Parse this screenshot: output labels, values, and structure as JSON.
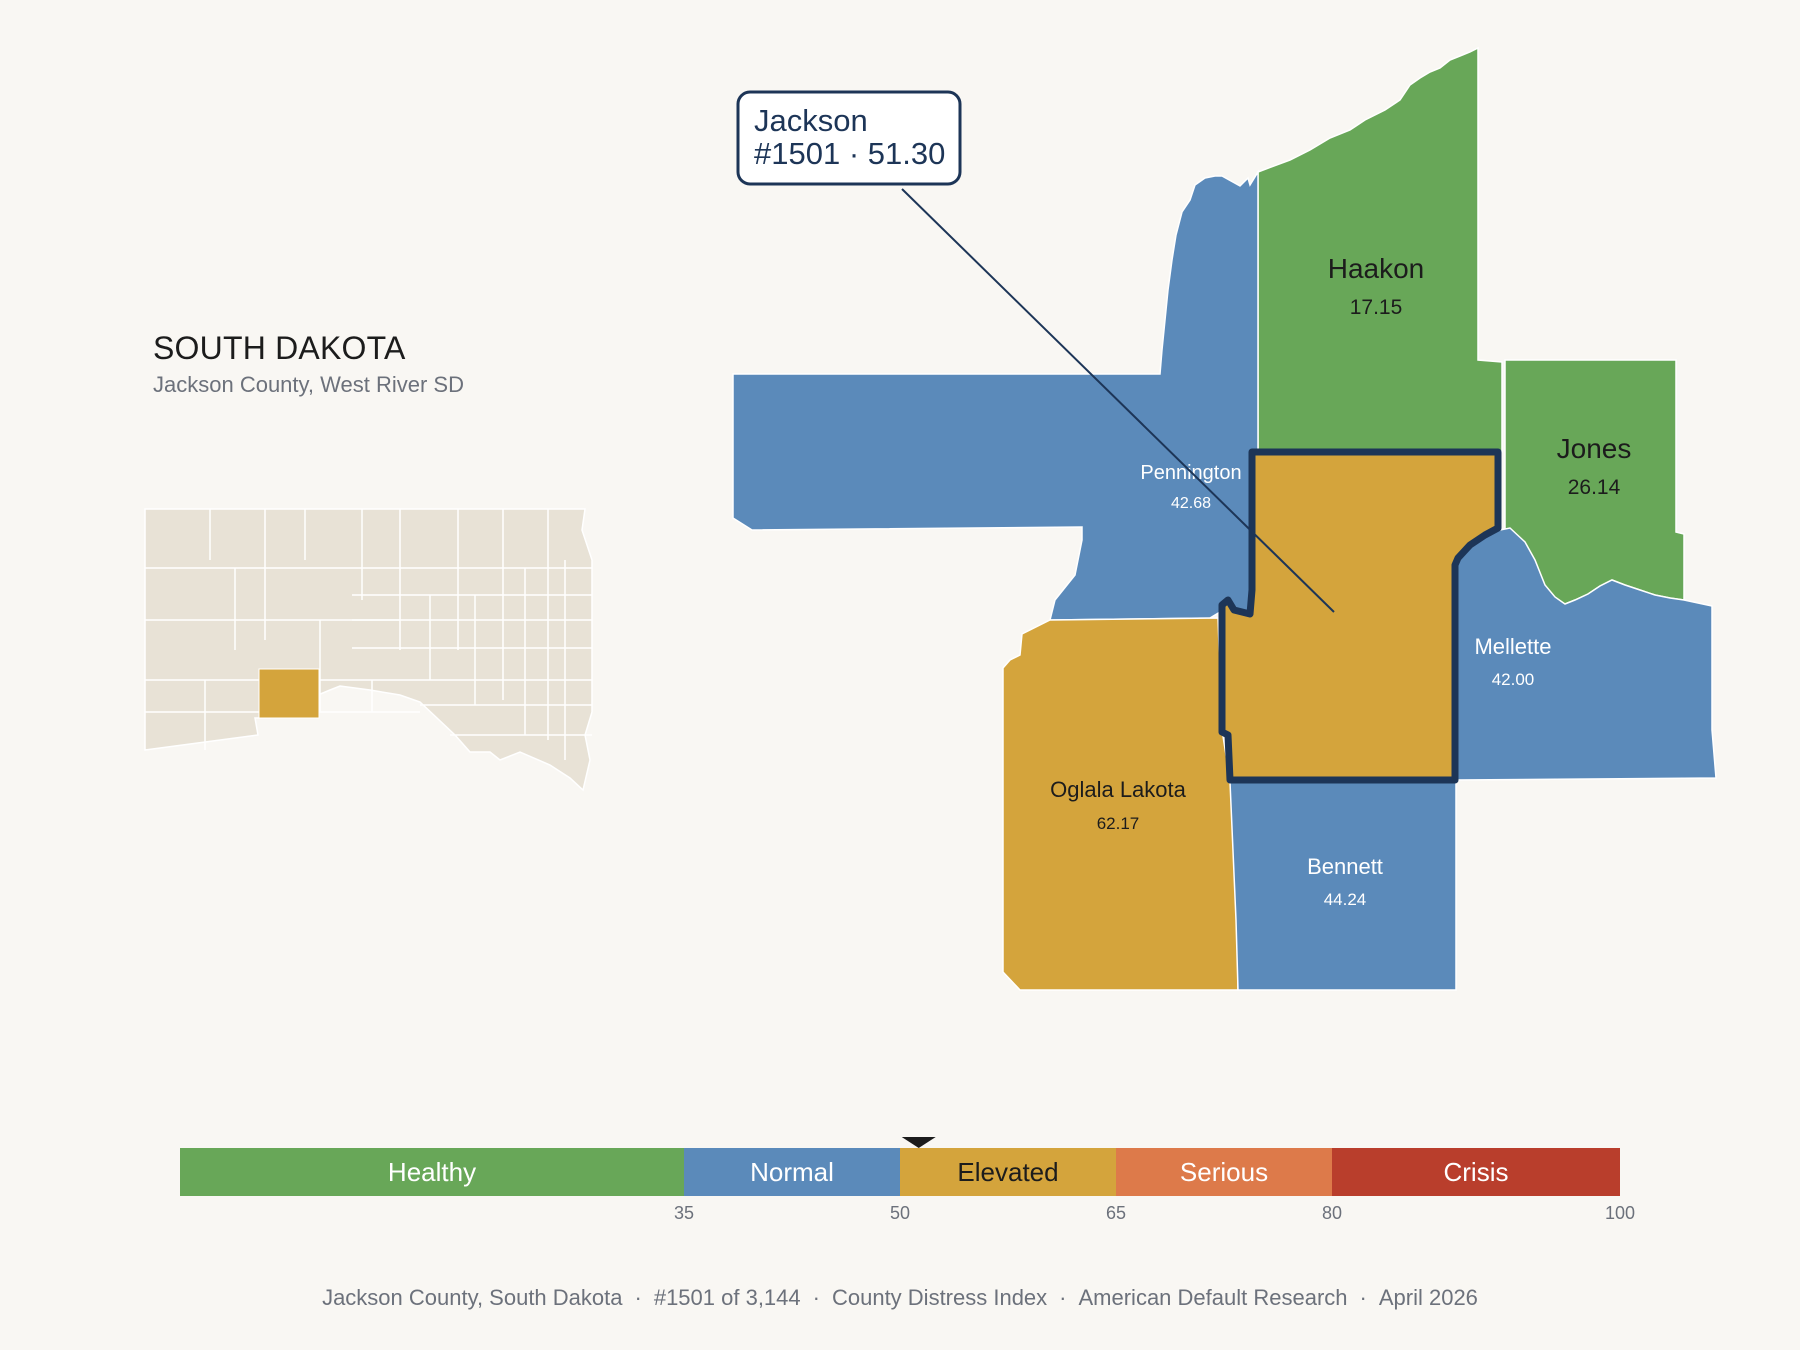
{
  "header": {
    "title": "SOUTH DAKOTA",
    "subtitle": "Jackson County, West River SD"
  },
  "callout": {
    "name": "Jackson",
    "detail": "#1501 · 51.30"
  },
  "counties": [
    {
      "id": "haakon",
      "name": "Haakon",
      "value": "17.15",
      "color": "#68a758"
    },
    {
      "id": "jones",
      "name": "Jones",
      "value": "26.14",
      "color": "#68a758"
    },
    {
      "id": "pennington",
      "name": "Pennington",
      "value": "42.68",
      "color": "#5b8aba"
    },
    {
      "id": "mellette",
      "name": "Mellette",
      "value": "42.00",
      "color": "#5b8aba"
    },
    {
      "id": "oglala",
      "name": "Oglala Lakota",
      "value": "62.17",
      "color": "#d4a43c"
    },
    {
      "id": "bennett",
      "name": "Bennett",
      "value": "44.24",
      "color": "#5b8aba"
    },
    {
      "id": "jackson",
      "name": "Jackson",
      "value": "51.30",
      "color": "#d4a43c"
    }
  ],
  "legend": {
    "categories": [
      {
        "label": "Healthy",
        "min": 0,
        "max": 35,
        "color": "#68a758"
      },
      {
        "label": "Normal",
        "min": 35,
        "max": 50,
        "color": "#5b8aba"
      },
      {
        "label": "Elevated",
        "min": 50,
        "max": 65,
        "color": "#d4a43c"
      },
      {
        "label": "Serious",
        "min": 65,
        "max": 80,
        "color": "#dd7a4a"
      },
      {
        "label": "Crisis",
        "min": 80,
        "max": 100,
        "color": "#b93e2c"
      }
    ],
    "ticks": [
      "35",
      "50",
      "65",
      "80",
      "100"
    ],
    "marker_value": 51.3
  },
  "footer": {
    "county": "Jackson County, South Dakota",
    "rank": "#1501 of 3,144",
    "index": "County Distress Index",
    "source": "American Default Research",
    "date": "April 2026"
  },
  "colors": {
    "background": "#f9f7f3",
    "highlight_outline": "#1d3557",
    "inset_fill": "#e8e2d6",
    "inset_highlight": "#d4a43c"
  }
}
